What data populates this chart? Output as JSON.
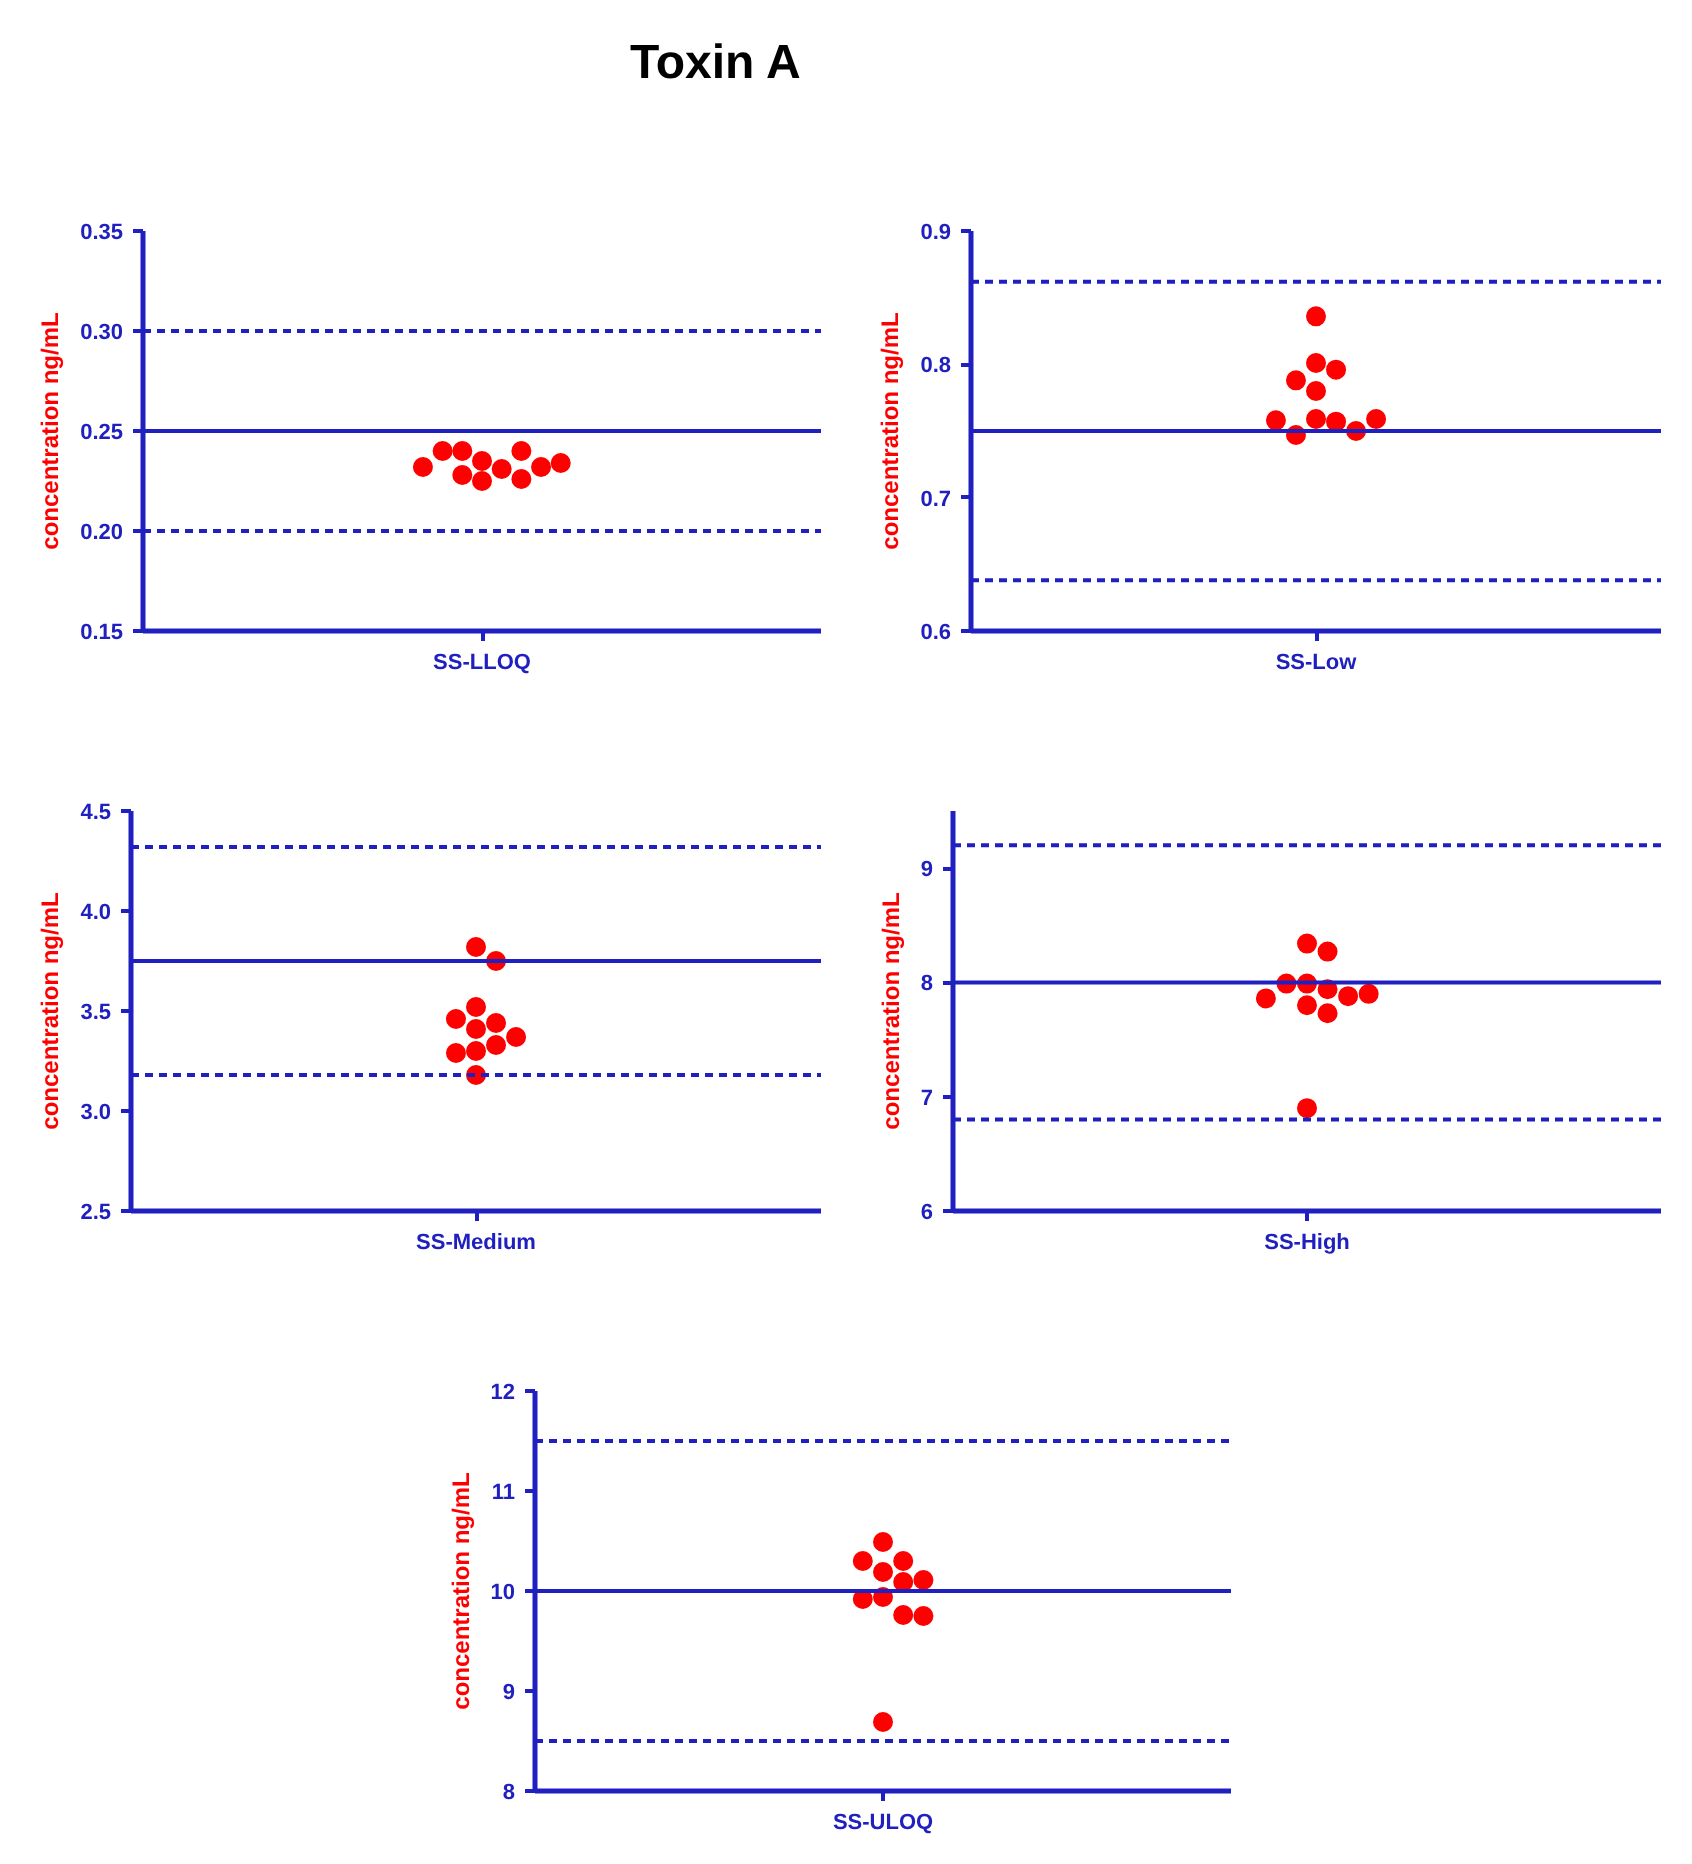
{
  "chart_data": [
    {
      "type": "scatter",
      "title": "Toxin A",
      "categories": [
        "SS-LLOQ"
      ],
      "ylabel": "concentration ng/mL",
      "ylim": [
        0.15,
        0.35
      ],
      "yticks": [
        {
          "value": 0.15,
          "label": "0.15"
        },
        {
          "value": 0.2,
          "label": "0.20"
        },
        {
          "value": 0.25,
          "label": "0.25"
        },
        {
          "value": 0.3,
          "label": "0.30"
        },
        {
          "value": 0.35,
          "label": "0.35"
        }
      ],
      "marker": "circle",
      "series": [
        {
          "color": "#ff0000",
          "x": [
            "SS-LLOQ",
            "SS-LLOQ",
            "SS-LLOQ",
            "SS-LLOQ",
            "SS-LLOQ",
            "SS-LLOQ",
            "SS-LLOQ",
            "SS-LLOQ",
            "SS-LLOQ",
            "SS-LLOQ",
            "SS-LLOQ"
          ],
          "values": [
            0.235,
            0.231,
            0.24,
            0.228,
            0.24,
            0.225,
            0.24,
            0.226,
            0.232,
            0.232,
            0.234
          ]
        }
      ],
      "ref_lines": [
        {
          "axis": "y",
          "value": 0.3,
          "color": "#2020c0",
          "line_style": "dashed"
        },
        {
          "axis": "y",
          "value": 0.25,
          "color": "#2020c0",
          "line_style": "solid"
        },
        {
          "axis": "y",
          "value": 0.2,
          "color": "#2020c0",
          "line_style": "dashed"
        }
      ]
    },
    {
      "type": "scatter",
      "categories": [
        "SS-Low"
      ],
      "ylabel": "concentration ng/mL",
      "ylim": [
        0.6,
        0.9
      ],
      "yticks": [
        0.6,
        0.7,
        0.8,
        0.9
      ],
      "marker": "circle",
      "series": [
        {
          "color": "#ff0000",
          "x": [
            "SS-Low",
            "SS-Low",
            "SS-Low",
            "SS-Low",
            "SS-Low",
            "SS-Low",
            "SS-Low",
            "SS-Low",
            "SS-Low",
            "SS-Low",
            "SS-Low"
          ],
          "values": [
            0.836,
            0.801,
            0.796,
            0.788,
            0.78,
            0.759,
            0.757,
            0.747,
            0.75,
            0.758,
            0.759
          ]
        }
      ],
      "ref_lines": [
        {
          "axis": "y",
          "value": 0.862,
          "color": "#2020c0",
          "line_style": "dashed"
        },
        {
          "axis": "y",
          "value": 0.75,
          "color": "#2020c0",
          "line_style": "solid"
        },
        {
          "axis": "y",
          "value": 0.638,
          "color": "#2020c0",
          "line_style": "dashed"
        }
      ]
    },
    {
      "type": "scatter",
      "categories": [
        "SS-Medium"
      ],
      "ylabel": "concentration ng/mL",
      "ylim": [
        2.5,
        4.5
      ],
      "yticks": [
        2.5,
        {
          "value": 3,
          "label": "3.0"
        },
        3.5,
        {
          "value": 4,
          "label": "4.0"
        },
        4.5
      ],
      "marker": "circle",
      "series": [
        {
          "color": "#ff0000",
          "x": [
            "SS-Medium",
            "SS-Medium",
            "SS-Medium",
            "SS-Medium",
            "SS-Medium",
            "SS-Medium",
            "SS-Medium",
            "SS-Medium",
            "SS-Medium",
            "SS-Medium",
            "SS-Medium"
          ],
          "values": [
            3.82,
            3.75,
            3.52,
            3.44,
            3.46,
            3.41,
            3.37,
            3.33,
            3.3,
            3.29,
            3.18
          ]
        }
      ],
      "ref_lines": [
        {
          "axis": "y",
          "value": 4.32,
          "color": "#2020c0",
          "line_style": "dashed"
        },
        {
          "axis": "y",
          "value": 3.75,
          "color": "#2020c0",
          "line_style": "solid"
        },
        {
          "axis": "y",
          "value": 3.18,
          "color": "#2020c0",
          "line_style": "dashed"
        }
      ]
    },
    {
      "type": "scatter",
      "categories": [
        "SS-High"
      ],
      "ylabel": "concentration ng/mL",
      "ylim": [
        6,
        9.5
      ],
      "yticks": [
        6,
        7,
        8,
        9
      ],
      "marker": "circle",
      "series": [
        {
          "color": "#ff0000",
          "x": [
            "SS-High",
            "SS-High",
            "SS-High",
            "SS-High",
            "SS-High",
            "SS-High",
            "SS-High",
            "SS-High",
            "SS-High",
            "SS-High",
            "SS-High"
          ],
          "values": [
            8.34,
            8.27,
            7.99,
            7.94,
            7.99,
            7.88,
            7.86,
            7.9,
            7.8,
            7.73,
            6.9
          ]
        }
      ],
      "ref_lines": [
        {
          "axis": "y",
          "value": 9.2,
          "color": "#2020c0",
          "line_style": "dashed"
        },
        {
          "axis": "y",
          "value": 8,
          "color": "#2020c0",
          "line_style": "solid"
        },
        {
          "axis": "y",
          "value": 6.8,
          "color": "#2020c0",
          "line_style": "dashed"
        }
      ]
    },
    {
      "type": "scatter",
      "categories": [
        "SS-ULOQ"
      ],
      "ylabel": "concentration ng/mL",
      "ylim": [
        8,
        12
      ],
      "yticks": [
        8,
        9,
        10,
        11,
        12
      ],
      "marker": "circle",
      "series": [
        {
          "color": "#ff0000",
          "x": [
            "SS-ULOQ",
            "SS-ULOQ",
            "SS-ULOQ",
            "SS-ULOQ",
            "SS-ULOQ",
            "SS-ULOQ",
            "SS-ULOQ",
            "SS-ULOQ",
            "SS-ULOQ",
            "SS-ULOQ",
            "SS-ULOQ"
          ],
          "values": [
            10.49,
            10.3,
            10.3,
            10.19,
            10.09,
            10.11,
            9.94,
            9.92,
            9.76,
            9.75,
            8.69
          ]
        }
      ],
      "ref_lines": [
        {
          "axis": "y",
          "value": 11.5,
          "color": "#2020c0",
          "line_style": "dashed"
        },
        {
          "axis": "y",
          "value": 10,
          "color": "#2020c0",
          "line_style": "solid"
        },
        {
          "axis": "y",
          "value": 8.5,
          "color": "#2020c0",
          "line_style": "dashed"
        }
      ]
    }
  ]
}
